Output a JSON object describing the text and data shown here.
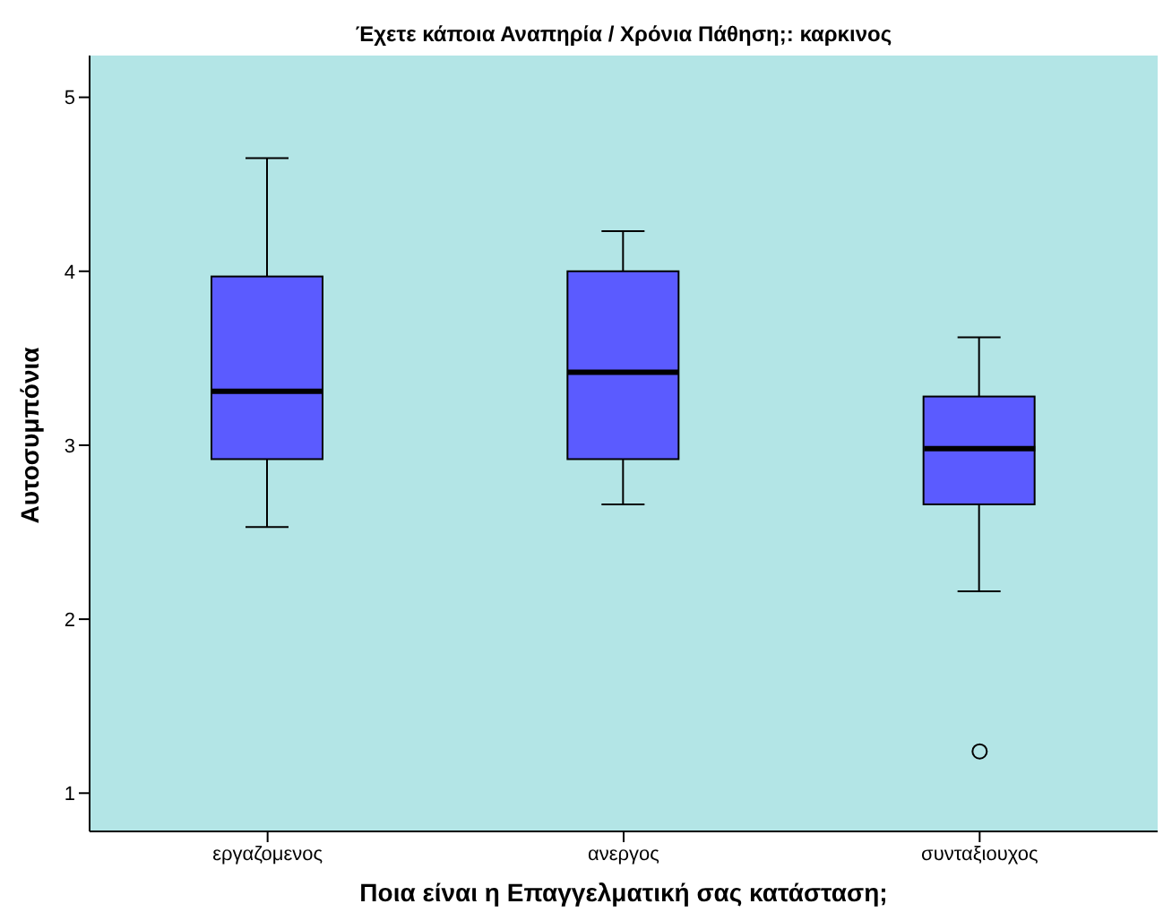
{
  "chart_data": {
    "type": "box",
    "title": "Έχετε κάποια Αναπηρία / Χρόνια Πάθηση;: καρκινος",
    "xlabel": "Ποια είναι η Επαγγελματική σας κατάσταση;",
    "ylabel": "Αυτοσυμπόνια",
    "categories": [
      "εργαζομενος",
      "ανεργος",
      "συνταξιουχος"
    ],
    "color": "#5b5bff",
    "boxes": [
      {
        "low": 2.53,
        "q1": 2.92,
        "median": 3.31,
        "q3": 3.97,
        "high": 4.65
      },
      {
        "low": 2.66,
        "q1": 2.92,
        "median": 3.42,
        "q3": 4.0,
        "high": 4.23
      },
      {
        "low": 2.16,
        "q1": 2.66,
        "median": 2.98,
        "q3": 3.28,
        "high": 3.62,
        "outliers": [
          1.24
        ]
      }
    ],
    "ylim": [
      0.78,
      5.24
    ],
    "yticks": [
      1,
      2,
      3,
      4,
      5
    ],
    "grid": false
  }
}
